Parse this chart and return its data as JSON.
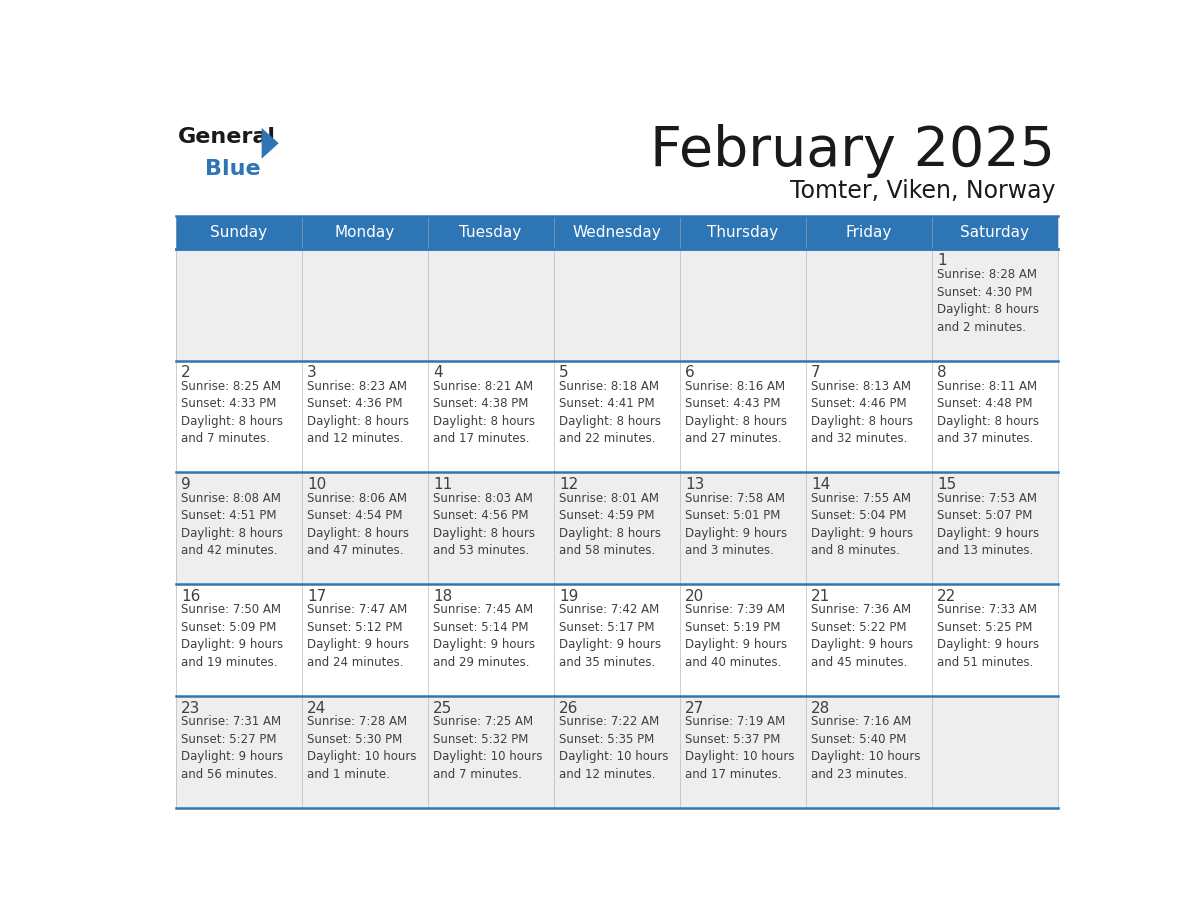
{
  "title": "February 2025",
  "subtitle": "Tomter, Viken, Norway",
  "header_bg": "#2E75B6",
  "header_text_color": "#FFFFFF",
  "cell_bg_light": "#EEEEEE",
  "cell_bg_white": "#FFFFFF",
  "border_color": "#2E75B6",
  "text_color": "#404040",
  "days_of_week": [
    "Sunday",
    "Monday",
    "Tuesday",
    "Wednesday",
    "Thursday",
    "Friday",
    "Saturday"
  ],
  "calendar_data": [
    [
      {
        "day": null,
        "info": null
      },
      {
        "day": null,
        "info": null
      },
      {
        "day": null,
        "info": null
      },
      {
        "day": null,
        "info": null
      },
      {
        "day": null,
        "info": null
      },
      {
        "day": null,
        "info": null
      },
      {
        "day": 1,
        "info": "Sunrise: 8:28 AM\nSunset: 4:30 PM\nDaylight: 8 hours\nand 2 minutes."
      }
    ],
    [
      {
        "day": 2,
        "info": "Sunrise: 8:25 AM\nSunset: 4:33 PM\nDaylight: 8 hours\nand 7 minutes."
      },
      {
        "day": 3,
        "info": "Sunrise: 8:23 AM\nSunset: 4:36 PM\nDaylight: 8 hours\nand 12 minutes."
      },
      {
        "day": 4,
        "info": "Sunrise: 8:21 AM\nSunset: 4:38 PM\nDaylight: 8 hours\nand 17 minutes."
      },
      {
        "day": 5,
        "info": "Sunrise: 8:18 AM\nSunset: 4:41 PM\nDaylight: 8 hours\nand 22 minutes."
      },
      {
        "day": 6,
        "info": "Sunrise: 8:16 AM\nSunset: 4:43 PM\nDaylight: 8 hours\nand 27 minutes."
      },
      {
        "day": 7,
        "info": "Sunrise: 8:13 AM\nSunset: 4:46 PM\nDaylight: 8 hours\nand 32 minutes."
      },
      {
        "day": 8,
        "info": "Sunrise: 8:11 AM\nSunset: 4:48 PM\nDaylight: 8 hours\nand 37 minutes."
      }
    ],
    [
      {
        "day": 9,
        "info": "Sunrise: 8:08 AM\nSunset: 4:51 PM\nDaylight: 8 hours\nand 42 minutes."
      },
      {
        "day": 10,
        "info": "Sunrise: 8:06 AM\nSunset: 4:54 PM\nDaylight: 8 hours\nand 47 minutes."
      },
      {
        "day": 11,
        "info": "Sunrise: 8:03 AM\nSunset: 4:56 PM\nDaylight: 8 hours\nand 53 minutes."
      },
      {
        "day": 12,
        "info": "Sunrise: 8:01 AM\nSunset: 4:59 PM\nDaylight: 8 hours\nand 58 minutes."
      },
      {
        "day": 13,
        "info": "Sunrise: 7:58 AM\nSunset: 5:01 PM\nDaylight: 9 hours\nand 3 minutes."
      },
      {
        "day": 14,
        "info": "Sunrise: 7:55 AM\nSunset: 5:04 PM\nDaylight: 9 hours\nand 8 minutes."
      },
      {
        "day": 15,
        "info": "Sunrise: 7:53 AM\nSunset: 5:07 PM\nDaylight: 9 hours\nand 13 minutes."
      }
    ],
    [
      {
        "day": 16,
        "info": "Sunrise: 7:50 AM\nSunset: 5:09 PM\nDaylight: 9 hours\nand 19 minutes."
      },
      {
        "day": 17,
        "info": "Sunrise: 7:47 AM\nSunset: 5:12 PM\nDaylight: 9 hours\nand 24 minutes."
      },
      {
        "day": 18,
        "info": "Sunrise: 7:45 AM\nSunset: 5:14 PM\nDaylight: 9 hours\nand 29 minutes."
      },
      {
        "day": 19,
        "info": "Sunrise: 7:42 AM\nSunset: 5:17 PM\nDaylight: 9 hours\nand 35 minutes."
      },
      {
        "day": 20,
        "info": "Sunrise: 7:39 AM\nSunset: 5:19 PM\nDaylight: 9 hours\nand 40 minutes."
      },
      {
        "day": 21,
        "info": "Sunrise: 7:36 AM\nSunset: 5:22 PM\nDaylight: 9 hours\nand 45 minutes."
      },
      {
        "day": 22,
        "info": "Sunrise: 7:33 AM\nSunset: 5:25 PM\nDaylight: 9 hours\nand 51 minutes."
      }
    ],
    [
      {
        "day": 23,
        "info": "Sunrise: 7:31 AM\nSunset: 5:27 PM\nDaylight: 9 hours\nand 56 minutes."
      },
      {
        "day": 24,
        "info": "Sunrise: 7:28 AM\nSunset: 5:30 PM\nDaylight: 10 hours\nand 1 minute."
      },
      {
        "day": 25,
        "info": "Sunrise: 7:25 AM\nSunset: 5:32 PM\nDaylight: 10 hours\nand 7 minutes."
      },
      {
        "day": 26,
        "info": "Sunrise: 7:22 AM\nSunset: 5:35 PM\nDaylight: 10 hours\nand 12 minutes."
      },
      {
        "day": 27,
        "info": "Sunrise: 7:19 AM\nSunset: 5:37 PM\nDaylight: 10 hours\nand 17 minutes."
      },
      {
        "day": 28,
        "info": "Sunrise: 7:16 AM\nSunset: 5:40 PM\nDaylight: 10 hours\nand 23 minutes."
      },
      {
        "day": null,
        "info": null
      }
    ]
  ],
  "logo_general_color": "#1a1a1a",
  "logo_blue_color": "#2E75B6",
  "title_fontsize": 40,
  "subtitle_fontsize": 17,
  "day_header_fontsize": 11,
  "day_num_fontsize": 11,
  "cell_text_fontsize": 8.5
}
